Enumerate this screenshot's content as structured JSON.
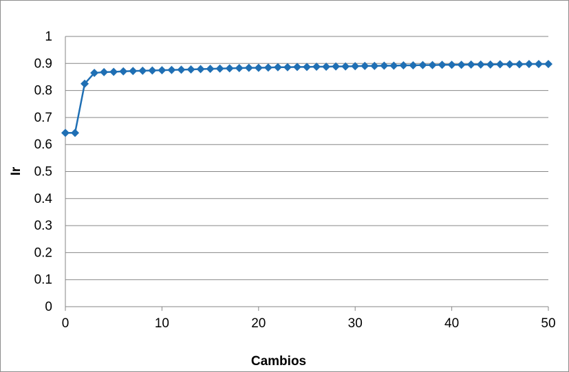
{
  "chart_data": {
    "type": "line",
    "title": "",
    "xlabel": "Cambios",
    "ylabel": "Ir",
    "xlim": [
      0,
      50
    ],
    "ylim": [
      0,
      1
    ],
    "x_ticks": [
      "0",
      "10",
      "20",
      "30",
      "40",
      "50"
    ],
    "y_ticks": [
      "0",
      "0.1",
      "0.2",
      "0.3",
      "0.4",
      "0.5",
      "0.6",
      "0.7",
      "0.8",
      "0.9",
      "1"
    ],
    "grid": "horizontal",
    "legend": "none",
    "marker": "diamond",
    "series_color": "#1F6FB4",
    "series": [
      {
        "x": [
          0,
          1,
          2,
          3,
          4,
          5,
          6,
          7,
          8,
          9,
          10,
          11,
          12,
          13,
          14,
          15,
          16,
          17,
          18,
          19,
          20,
          21,
          22,
          23,
          24,
          25,
          26,
          27,
          28,
          29,
          30,
          31,
          32,
          33,
          34,
          35,
          36,
          37,
          38,
          39,
          40,
          41,
          42,
          43,
          44,
          45,
          46,
          47,
          48,
          49,
          50
        ],
        "values": [
          0.643,
          0.643,
          0.825,
          0.865,
          0.868,
          0.869,
          0.871,
          0.872,
          0.873,
          0.874,
          0.875,
          0.876,
          0.877,
          0.878,
          0.879,
          0.88,
          0.881,
          0.882,
          0.883,
          0.884,
          0.884,
          0.885,
          0.886,
          0.886,
          0.887,
          0.887,
          0.888,
          0.888,
          0.889,
          0.889,
          0.89,
          0.891,
          0.891,
          0.892,
          0.892,
          0.893,
          0.893,
          0.894,
          0.894,
          0.895,
          0.895,
          0.895,
          0.896,
          0.896,
          0.896,
          0.897,
          0.897,
          0.897,
          0.898,
          0.898,
          0.898
        ]
      }
    ]
  }
}
